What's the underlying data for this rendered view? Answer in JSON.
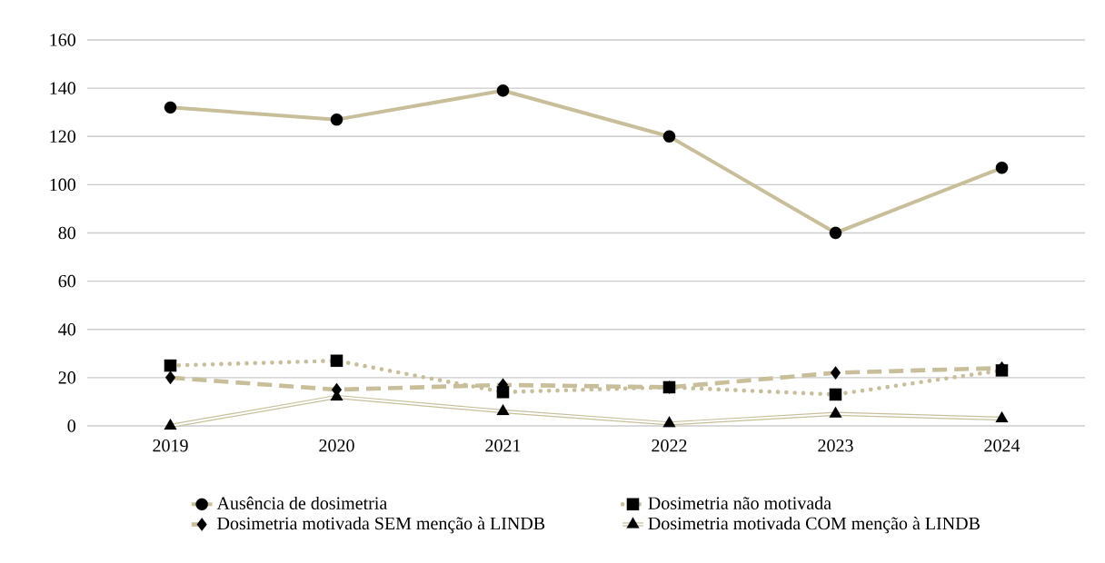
{
  "chart_data": {
    "type": "line",
    "categories": [
      "2019",
      "2020",
      "2021",
      "2022",
      "2023",
      "2024"
    ],
    "series": [
      {
        "name": "Ausência de dosimetria",
        "color": "#c8bf9a",
        "marker": "circle",
        "line_style": "solid",
        "values": [
          132,
          127,
          139,
          120,
          80,
          107
        ]
      },
      {
        "name": "Dosimetria não motivada",
        "color": "#c8bf9a",
        "marker": "square",
        "line_style": "dotted",
        "values": [
          25,
          27,
          14,
          16,
          13,
          23
        ]
      },
      {
        "name": "Dosimetria motivada SEM menção à LINDB",
        "color": "#c8bf9a",
        "marker": "diamond",
        "line_style": "dashed",
        "values": [
          20,
          15,
          17,
          16,
          22,
          24
        ]
      },
      {
        "name": "Dosimetria motivada COM menção à LINDB",
        "color": "#c8bf9a",
        "marker": "triangle",
        "line_style": "solid",
        "values": [
          0,
          12,
          6,
          1,
          5,
          3
        ]
      }
    ],
    "ylim": [
      0,
      160
    ],
    "yticks": [
      0,
      20,
      40,
      60,
      80,
      100,
      120,
      140,
      160
    ],
    "grid": "y",
    "legend": "bottom"
  }
}
